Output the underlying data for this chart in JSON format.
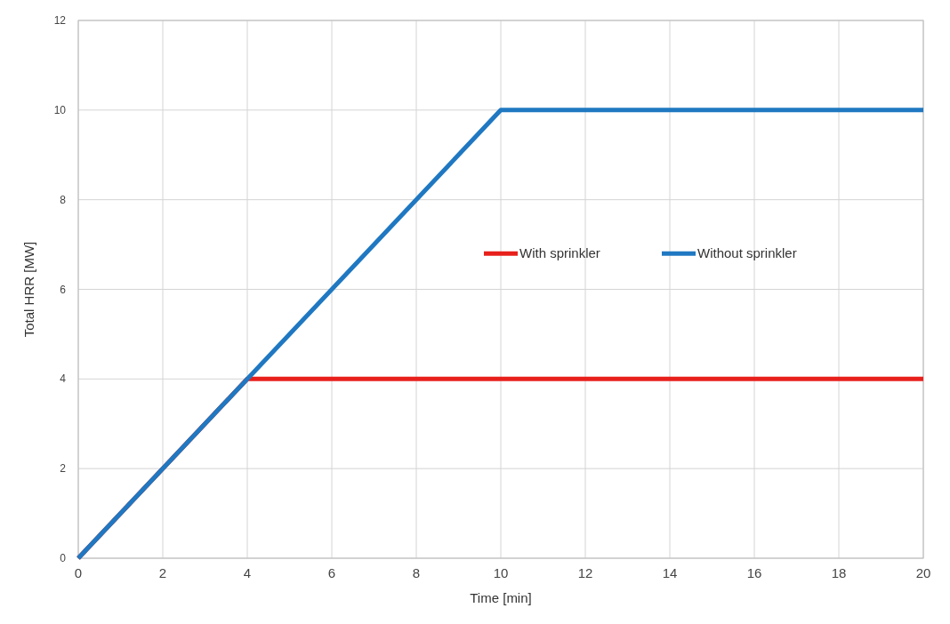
{
  "chart_data": {
    "type": "line",
    "xlabel": "Time [min]",
    "ylabel": "Total HRR [MW]",
    "xlim": [
      0,
      20
    ],
    "xticks": [
      0,
      2,
      4,
      6,
      8,
      10,
      12,
      14,
      16,
      18,
      20
    ],
    "ylim": [
      0,
      12
    ],
    "yticks": [
      0,
      2,
      4,
      6,
      8,
      10,
      12
    ],
    "grid": true,
    "legend": "right",
    "marker": "none",
    "line_style": "solid",
    "series": [
      {
        "name": "With sprinkler",
        "color": "#e8201c",
        "x": [
          0,
          4,
          20
        ],
        "values": [
          0,
          4,
          4
        ]
      },
      {
        "name": "Without sprinkler",
        "color": "#1f78c1",
        "x": [
          0,
          10,
          20
        ],
        "values": [
          0,
          10,
          10
        ]
      }
    ]
  }
}
